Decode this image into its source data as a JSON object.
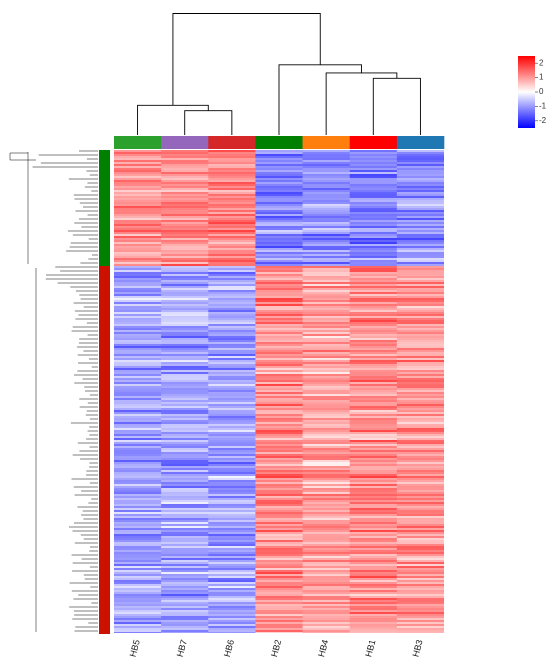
{
  "chart_data": {
    "type": "heatmap",
    "title": "",
    "xlabel": "",
    "ylabel": "",
    "columns": [
      "HB5",
      "HB7",
      "HB6",
      "HB2",
      "HB4",
      "HB1",
      "HB3"
    ],
    "column_annotation_colors": [
      "#2ca02c",
      "#9467bd",
      "#d62728",
      "#008000",
      "#ff7f0e",
      "#ff0000",
      "#1f77b4"
    ],
    "row_clusters": [
      {
        "name": "cluster-green",
        "color": "#008000",
        "row_fraction": 0.24,
        "mean_values": [
          1.1,
          1.1,
          1.2,
          -1.2,
          -1.1,
          -1.2,
          -1.1
        ]
      },
      {
        "name": "cluster-red",
        "color": "#cc1100",
        "row_fraction": 0.76,
        "mean_values": [
          -0.9,
          -0.9,
          -0.9,
          1.1,
          0.9,
          1.1,
          1.0
        ]
      }
    ],
    "column_dendrogram": [
      {
        "merge": [
          "HB7",
          "HB6"
        ],
        "height": 0.9
      },
      {
        "merge": [
          "HB5",
          "HB7+HB6"
        ],
        "height": 1.1
      },
      {
        "merge": [
          "HB1",
          "HB3"
        ],
        "height": 2.1
      },
      {
        "merge": [
          "HB4",
          "HB1+HB3"
        ],
        "height": 2.3
      },
      {
        "merge": [
          "HB2",
          "HB4+HB1+HB3"
        ],
        "height": 2.6
      },
      {
        "merge": [
          "HB5+HB7+HB6",
          "HB2+HB4+HB1+HB3"
        ],
        "height": 4.5
      }
    ],
    "color_scale": {
      "min": -2.5,
      "max": 2.5,
      "ticks": [
        2,
        1,
        0,
        -1,
        -2
      ],
      "tick_labels": [
        "2",
        "1",
        "0",
        "-1",
        "-2"
      ],
      "low": "#0000ff",
      "mid": "#ffffff",
      "high": "#ff0000"
    },
    "legend_position": "top-right",
    "grid": false
  }
}
